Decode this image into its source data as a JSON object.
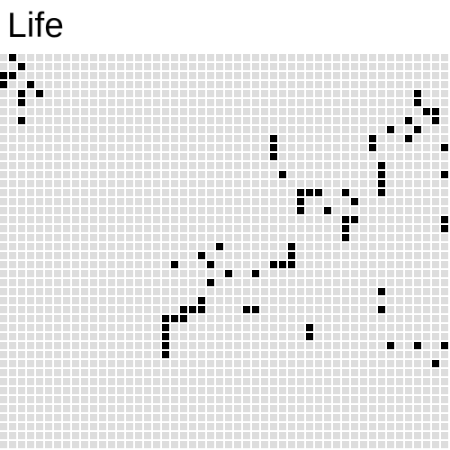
{
  "title": "Life",
  "board": {
    "columns": 50,
    "rows": 44,
    "colors": {
      "alive": "#000000",
      "dead": "#dddddd",
      "background": "#ffffff"
    },
    "pattern": [
      ".*................................................",
      "..*...............................................",
      "**................................................",
      "*..*..............................................",
      "..*.*.........................................*...",
      "..*...........................................*...",
      "...............................................**.",
      "..*..........................................*..*.",
      "...........................................*..*...",
      "..............................*..........*...*....",
      "..............................*..........*.......*",
      "..............................*...................",
      "..........................................*.......",
      "...............................*..........*......*",
      "..........................................*.......",
      ".................................***..*...*.......",
      ".................................*.....*..........",
      ".................................*..*.............",
      "......................................**.........*",
      "......................................*..........*",
      "......................................*...........",
      "........................*.......*.................",
      "......................*.........*.................",
      "...................*...*......***.................",
      ".........................*..*.....................",
      ".......................*..........................",
      "..........................................*.......",
      "......................*...........................",
      "....................***....**.............*.......",
      "..................***.............................",
      "..................*...............*...............",
      "..................*...............*...............",
      "..................*........................*..*..*",
      "..................*...............................",
      "................................................*.",
      "..................................................",
      "..................................................",
      "..................................................",
      "..................................................",
      "..................................................",
      "..................................................",
      "..................................................",
      "..................................................",
      ".................................................."
    ]
  }
}
